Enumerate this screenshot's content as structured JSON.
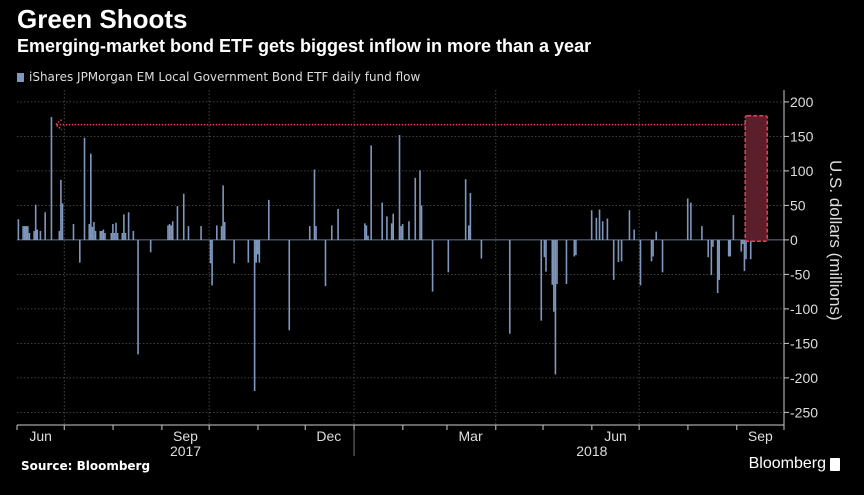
{
  "header": {
    "title": "Green Shoots",
    "subtitle": "Emerging-market bond ETF gets biggest inflow in more than a year"
  },
  "footer": {
    "source": "Source: Bloomberg",
    "brand": "Bloomberg"
  },
  "colors": {
    "bar": "#7f97bd",
    "highlight_fill": "#5b1e2b",
    "highlight_border": "#e8405c",
    "grid": "#555555",
    "background": "#000000"
  },
  "chart_data": {
    "type": "bar",
    "title": "Green Shoots",
    "subtitle": "Emerging-market bond ETF gets biggest inflow in more than a year",
    "legend": [
      "iShares JPMorgan EM Local Government Bond ETF daily fund flow"
    ],
    "legend_placement": "top-left",
    "ylabel": "U.S. dollars (millions)",
    "ylim": [
      -250,
      200
    ],
    "yticks": [
      200,
      150,
      100,
      50,
      0,
      -50,
      -100,
      -150,
      -200,
      -250
    ],
    "y_axis_side": "right",
    "xlim": [
      "2017-06-01",
      "2018-10-01"
    ],
    "xtick_labels": [
      {
        "label": "Jun",
        "date": "2017-06-16"
      },
      {
        "label": "Sep",
        "date": "2017-09-16"
      },
      {
        "label": "Dec",
        "date": "2017-12-16"
      },
      {
        "label": "Mar",
        "date": "2018-03-16"
      },
      {
        "label": "Jun",
        "date": "2018-06-16"
      },
      {
        "label": "Sep",
        "date": "2018-09-16"
      }
    ],
    "year_labels": [
      {
        "label": "2017",
        "date": "2017-09-16"
      },
      {
        "label": "2018",
        "date": "2018-06-01"
      }
    ],
    "grid": true,
    "annotation": {
      "type": "highlight-box-with-arrow",
      "from_date": "2018-09-14",
      "to_date": "2017-06-23",
      "level": 167
    },
    "series": [
      {
        "name": "iShares JPMorgan EM Local Government Bond ETF daily fund flow",
        "points": [
          [
            "2017-06-02",
            30
          ],
          [
            "2017-06-05",
            20
          ],
          [
            "2017-06-06",
            20
          ],
          [
            "2017-06-07",
            20
          ],
          [
            "2017-06-08",
            20
          ],
          [
            "2017-06-09",
            10
          ],
          [
            "2017-06-12",
            13
          ],
          [
            "2017-06-13",
            51
          ],
          [
            "2017-06-14",
            15
          ],
          [
            "2017-06-16",
            13
          ],
          [
            "2017-06-19",
            40
          ],
          [
            "2017-06-23",
            178
          ],
          [
            "2017-06-28",
            13
          ],
          [
            "2017-06-29",
            87
          ],
          [
            "2017-06-30",
            53
          ],
          [
            "2017-07-07",
            23
          ],
          [
            "2017-07-11",
            -33
          ],
          [
            "2017-07-14",
            148
          ],
          [
            "2017-07-17",
            23
          ],
          [
            "2017-07-18",
            125
          ],
          [
            "2017-07-19",
            19
          ],
          [
            "2017-07-20",
            26
          ],
          [
            "2017-07-21",
            13
          ],
          [
            "2017-07-24",
            13
          ],
          [
            "2017-07-25",
            13
          ],
          [
            "2017-07-26",
            15
          ],
          [
            "2017-07-27",
            10
          ],
          [
            "2017-07-31",
            10
          ],
          [
            "2017-08-01",
            23
          ],
          [
            "2017-08-02",
            10
          ],
          [
            "2017-08-03",
            25
          ],
          [
            "2017-08-04",
            10
          ],
          [
            "2017-08-07",
            10
          ],
          [
            "2017-08-08",
            37
          ],
          [
            "2017-08-09",
            10
          ],
          [
            "2017-08-11",
            40
          ],
          [
            "2017-08-14",
            13
          ],
          [
            "2017-08-17",
            -166
          ],
          [
            "2017-08-25",
            -18
          ],
          [
            "2017-09-05",
            21
          ],
          [
            "2017-09-06",
            23
          ],
          [
            "2017-09-07",
            21
          ],
          [
            "2017-09-08",
            27
          ],
          [
            "2017-09-11",
            49
          ],
          [
            "2017-09-15",
            67
          ],
          [
            "2017-09-18",
            20
          ],
          [
            "2017-09-26",
            20
          ],
          [
            "2017-10-02",
            -34
          ],
          [
            "2017-10-03",
            -66
          ],
          [
            "2017-10-06",
            21
          ],
          [
            "2017-10-09",
            20
          ],
          [
            "2017-10-10",
            79
          ],
          [
            "2017-10-11",
            26
          ],
          [
            "2017-10-17",
            -34
          ],
          [
            "2017-10-26",
            -33
          ],
          [
            "2017-10-30",
            -219
          ],
          [
            "2017-10-31",
            -33
          ],
          [
            "2017-11-01",
            -21
          ],
          [
            "2017-11-02",
            -33
          ],
          [
            "2017-11-08",
            58
          ],
          [
            "2017-11-21",
            -131
          ],
          [
            "2017-12-04",
            20
          ],
          [
            "2017-12-07",
            102
          ],
          [
            "2017-12-08",
            20
          ],
          [
            "2017-12-14",
            -67
          ],
          [
            "2017-12-18",
            21
          ],
          [
            "2017-12-22",
            45
          ],
          [
            "2018-01-08",
            24
          ],
          [
            "2018-01-09",
            21
          ],
          [
            "2018-01-10",
            6
          ],
          [
            "2018-01-12",
            137
          ],
          [
            "2018-01-19",
            54
          ],
          [
            "2018-01-22",
            34
          ],
          [
            "2018-01-25",
            24
          ],
          [
            "2018-01-26",
            38
          ],
          [
            "2018-01-30",
            152
          ],
          [
            "2018-01-31",
            20
          ],
          [
            "2018-02-01",
            23
          ],
          [
            "2018-02-05",
            27
          ],
          [
            "2018-02-09",
            90
          ],
          [
            "2018-02-12",
            101
          ],
          [
            "2018-02-13",
            50
          ],
          [
            "2018-02-20",
            -75
          ],
          [
            "2018-03-02",
            -47
          ],
          [
            "2018-03-13",
            88
          ],
          [
            "2018-03-15",
            21
          ],
          [
            "2018-03-16",
            68
          ],
          [
            "2018-03-23",
            -27
          ],
          [
            "2018-04-10",
            -136
          ],
          [
            "2018-04-30",
            -117
          ],
          [
            "2018-05-02",
            -25
          ],
          [
            "2018-05-03",
            -46
          ],
          [
            "2018-05-07",
            -65
          ],
          [
            "2018-05-08",
            -104
          ],
          [
            "2018-05-09",
            -195
          ],
          [
            "2018-05-10",
            -64
          ],
          [
            "2018-05-16",
            -64
          ],
          [
            "2018-05-21",
            -24
          ],
          [
            "2018-05-22",
            -22
          ],
          [
            "2018-06-01",
            43
          ],
          [
            "2018-06-04",
            32
          ],
          [
            "2018-06-06",
            44
          ],
          [
            "2018-06-08",
            27
          ],
          [
            "2018-06-11",
            31
          ],
          [
            "2018-06-15",
            -58
          ],
          [
            "2018-06-18",
            -32
          ],
          [
            "2018-06-20",
            -31
          ],
          [
            "2018-06-25",
            43
          ],
          [
            "2018-06-28",
            15
          ],
          [
            "2018-07-02",
            -66
          ],
          [
            "2018-07-09",
            -31
          ],
          [
            "2018-07-10",
            -24
          ],
          [
            "2018-07-12",
            12
          ],
          [
            "2018-07-16",
            -47
          ],
          [
            "2018-08-01",
            60
          ],
          [
            "2018-08-03",
            54
          ],
          [
            "2018-08-10",
            20
          ],
          [
            "2018-08-14",
            -25
          ],
          [
            "2018-08-16",
            -51
          ],
          [
            "2018-08-17",
            -10
          ],
          [
            "2018-08-20",
            -77
          ],
          [
            "2018-08-21",
            -58
          ],
          [
            "2018-08-27",
            -24
          ],
          [
            "2018-08-28",
            -24
          ],
          [
            "2018-08-30",
            36
          ],
          [
            "2018-09-04",
            -17
          ],
          [
            "2018-09-05",
            -6
          ],
          [
            "2018-09-06",
            -45
          ],
          [
            "2018-09-07",
            -28
          ],
          [
            "2018-09-10",
            -28
          ],
          [
            "2018-09-13",
            121
          ],
          [
            "2018-09-14",
            169
          ]
        ]
      }
    ]
  }
}
